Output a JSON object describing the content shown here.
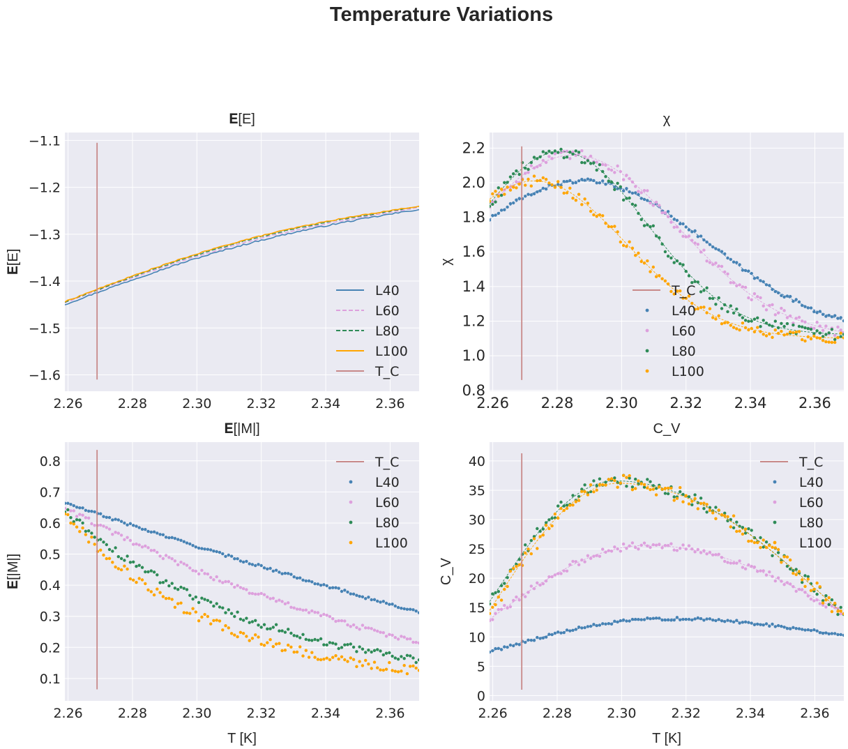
{
  "figure": {
    "title": "Temperature Variations"
  },
  "colors": {
    "L40": "#4682b4",
    "L60": "#dda0dd",
    "L80": "#2e8b57",
    "L100": "#ffa500",
    "T_C": "#c88989",
    "background": "#eaeaf2",
    "grid": "#ffffff"
  },
  "chart_data": [
    {
      "id": "energy",
      "type": "line",
      "title": "𝐄[E]",
      "xlabel": "",
      "ylabel": "𝐄[E]",
      "xlim": [
        2.259,
        2.369
      ],
      "ylim": [
        -1.635,
        -1.083
      ],
      "xticks": [
        2.26,
        2.28,
        2.3,
        2.32,
        2.34,
        2.36
      ],
      "xtick_labels": [
        "2.26",
        "2.28",
        "2.30",
        "2.32",
        "2.34",
        "2.36"
      ],
      "yticks": [
        -1.6,
        -1.5,
        -1.4,
        -1.3,
        -1.2,
        -1.1
      ],
      "ytick_labels": [
        "−1.6",
        "−1.5",
        "−1.4",
        "−1.3",
        "−1.2",
        "−1.1"
      ],
      "grid": true,
      "legend": "lower-right",
      "tc_line": {
        "name": "T_C",
        "x": 2.269,
        "y": [
          -1.61,
          -1.105
        ]
      },
      "series": [
        {
          "name": "L40",
          "style": "solid",
          "start": -1.45,
          "end": -1.247,
          "curve": 0.025,
          "noise": 0.003
        },
        {
          "name": "L60",
          "style": "dashed",
          "start": -1.446,
          "end": -1.243,
          "curve": 0.025,
          "noise": 0.002
        },
        {
          "name": "L80",
          "style": "dashed",
          "start": -1.445,
          "end": -1.241,
          "curve": 0.027,
          "noise": 0.002
        },
        {
          "name": "L100",
          "style": "solid",
          "start": -1.444,
          "end": -1.24,
          "curve": 0.028,
          "noise": 0.002
        }
      ]
    },
    {
      "id": "chi",
      "type": "scatter",
      "title": "χ",
      "xlabel": "",
      "ylabel": "χ",
      "xlim": [
        2.259,
        2.369
      ],
      "ylim": [
        0.795,
        2.29
      ],
      "xticks": [
        2.26,
        2.28,
        2.3,
        2.32,
        2.34,
        2.36
      ],
      "xtick_labels": [
        "2.26",
        "2.28",
        "2.30",
        "2.32",
        "2.34",
        "2.36"
      ],
      "yticks": [
        0.8,
        1.0,
        1.2,
        1.4,
        1.6,
        1.8,
        2.0,
        2.2
      ],
      "ytick_labels": [
        "0.8",
        "1.0",
        "1.2",
        "1.4",
        "1.6",
        "1.8",
        "2.0",
        "2.2"
      ],
      "grid": true,
      "legend": "lower-center",
      "tc_line": {
        "name": "T_C",
        "x": 2.269,
        "y": [
          0.86,
          2.21
        ]
      },
      "series": [
        {
          "name": "L40",
          "peak_x": 2.288,
          "peak_y": 2.01,
          "base": 1.1,
          "width": 0.055,
          "noise": 0.012
        },
        {
          "name": "L60",
          "peak_x": 2.285,
          "peak_y": 2.16,
          "base": 1.1,
          "width": 0.046,
          "noise": 0.03
        },
        {
          "name": "L80",
          "peak_x": 2.281,
          "peak_y": 2.18,
          "base": 1.12,
          "width": 0.038,
          "noise": 0.035
        },
        {
          "name": "L100",
          "peak_x": 2.273,
          "peak_y": 2.01,
          "base": 1.1,
          "width": 0.04,
          "noise": 0.03
        }
      ]
    },
    {
      "id": "magnetization",
      "type": "scatter",
      "title": "𝐄[|M|]",
      "xlabel": "T [K]",
      "ylabel": "𝐄[|M|]",
      "xlim": [
        2.259,
        2.369
      ],
      "ylim": [
        0.028,
        0.86
      ],
      "xticks": [
        2.26,
        2.28,
        2.3,
        2.32,
        2.34,
        2.36
      ],
      "xtick_labels": [
        "2.26",
        "2.28",
        "2.30",
        "2.32",
        "2.34",
        "2.36"
      ],
      "yticks": [
        0.1,
        0.2,
        0.3,
        0.4,
        0.5,
        0.6,
        0.7,
        0.8
      ],
      "ytick_labels": [
        "0.1",
        "0.2",
        "0.3",
        "0.4",
        "0.5",
        "0.6",
        "0.7",
        "0.8"
      ],
      "grid": true,
      "legend": "top-right",
      "tc_line": {
        "name": "T_C",
        "x": 2.269,
        "y": [
          0.065,
          0.835
        ]
      },
      "series": [
        {
          "name": "L40",
          "start": 0.665,
          "end": 0.312,
          "curve": 0.2,
          "noise": 0.004
        },
        {
          "name": "L60",
          "start": 0.65,
          "end": 0.215,
          "curve": 0.8,
          "noise": 0.008
        },
        {
          "name": "L80",
          "start": 0.64,
          "end": 0.16,
          "curve": 1.8,
          "noise": 0.012
        },
        {
          "name": "L100",
          "start": 0.635,
          "end": 0.125,
          "curve": 2.4,
          "noise": 0.015
        }
      ]
    },
    {
      "id": "cv",
      "type": "scatter",
      "title": "C_V",
      "xlabel": "T [K]",
      "ylabel": "C_V",
      "xlim": [
        2.259,
        2.369
      ],
      "ylim": [
        -0.9,
        43.2
      ],
      "xticks": [
        2.26,
        2.28,
        2.3,
        2.32,
        2.34,
        2.36
      ],
      "xtick_labels": [
        "2.26",
        "2.28",
        "2.30",
        "2.32",
        "2.34",
        "2.36"
      ],
      "yticks": [
        0,
        5,
        10,
        15,
        20,
        25,
        30,
        35,
        40
      ],
      "ytick_labels": [
        "0",
        "5",
        "10",
        "15",
        "20",
        "25",
        "30",
        "35",
        "40"
      ],
      "grid": true,
      "legend": "top-right",
      "tc_line": {
        "name": "T_C",
        "x": 2.269,
        "y": [
          1.0,
          41.3
        ]
      },
      "series": [
        {
          "name": "L40",
          "peak_x": 2.315,
          "peak_y": 13.1,
          "start": 7.5,
          "end": 10.3,
          "noise": 0.25
        },
        {
          "name": "L60",
          "peak_x": 2.308,
          "peak_y": 25.6,
          "start": 13.0,
          "end": 14.0,
          "noise": 0.6
        },
        {
          "name": "L80",
          "peak_x": 2.298,
          "peak_y": 36.6,
          "start": 16.0,
          "end": 13.8,
          "noise": 1.0
        },
        {
          "name": "L100",
          "peak_x": 2.299,
          "peak_y": 36.2,
          "start": 14.5,
          "end": 13.8,
          "noise": 1.4
        }
      ]
    }
  ],
  "legends": {
    "energy": [
      "L40",
      "L60",
      "L80",
      "L100",
      "T_C"
    ],
    "chi": [
      "T_C",
      "L40",
      "L60",
      "L80",
      "L100"
    ],
    "magnetization": [
      "T_C",
      "L40",
      "L60",
      "L80",
      "L100"
    ],
    "cv": [
      "T_C",
      "L40",
      "L60",
      "L80",
      "L100"
    ]
  }
}
